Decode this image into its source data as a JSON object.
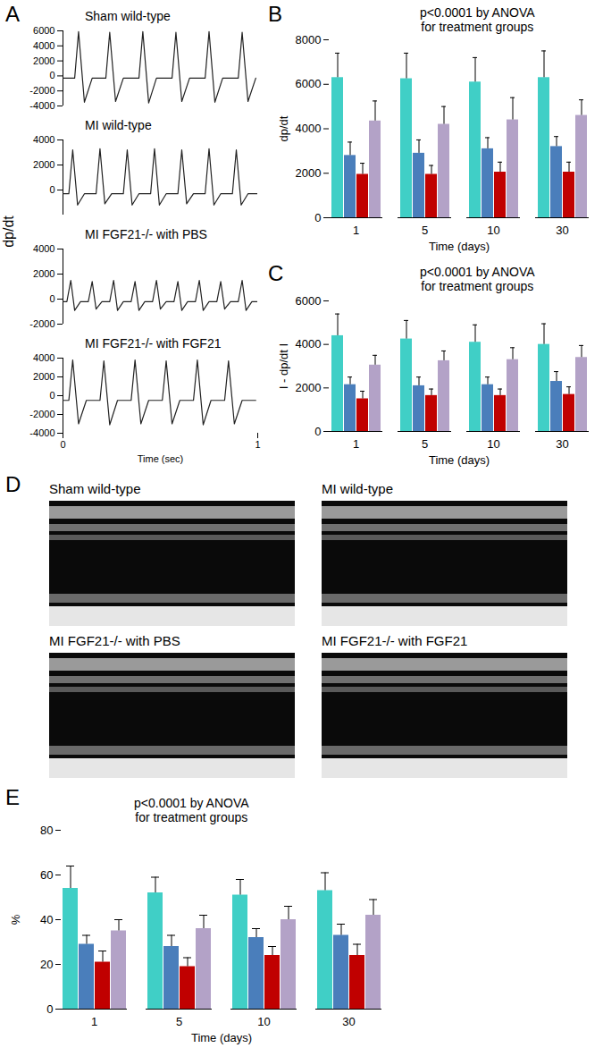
{
  "chart_data": [
    {
      "panel": "A",
      "type": "line",
      "y_label": "dp/dt",
      "x_label": "Time (sec)",
      "xlim": [
        0,
        1
      ],
      "xticks": [
        0,
        1
      ],
      "traces": [
        {
          "title": "Sham wild-type",
          "color": "#222222",
          "ylim": [
            -4000,
            6000
          ],
          "yticks": [
            -4000,
            -2000,
            0,
            2000,
            4000,
            6000
          ],
          "x": [
            0,
            0.06,
            0.08,
            0.11,
            0.15,
            0.22,
            0.24,
            0.27,
            0.31,
            0.39,
            0.41,
            0.44,
            0.48,
            0.56,
            0.58,
            0.61,
            0.65,
            0.73,
            0.75,
            0.78,
            0.82,
            0.9,
            0.92,
            0.95,
            0.99
          ],
          "values": [
            -300,
            -300,
            5900,
            -3500,
            -300,
            -300,
            5800,
            -3400,
            -300,
            -300,
            5900,
            -3600,
            -300,
            -300,
            5800,
            -3400,
            -300,
            -300,
            5900,
            -3500,
            -300,
            -300,
            5800,
            -3400,
            -300
          ]
        },
        {
          "title": "MI wild-type",
          "color": "#222222",
          "ylim": [
            -2000,
            4000
          ],
          "yticks": [
            0,
            2000,
            4000
          ],
          "x": [
            0,
            0.03,
            0.05,
            0.075,
            0.11,
            0.17,
            0.19,
            0.215,
            0.25,
            0.31,
            0.33,
            0.355,
            0.39,
            0.45,
            0.47,
            0.495,
            0.53,
            0.59,
            0.61,
            0.635,
            0.67,
            0.73,
            0.75,
            0.775,
            0.81,
            0.87,
            0.89,
            0.915,
            0.95,
            1
          ],
          "values": [
            -300,
            -300,
            3200,
            -1200,
            -300,
            -300,
            3300,
            -1100,
            -300,
            -300,
            3200,
            -1200,
            -300,
            -300,
            3300,
            -1200,
            -300,
            -300,
            3200,
            -1100,
            -300,
            -300,
            3300,
            -1200,
            -300,
            -300,
            3200,
            -1200,
            -300,
            -300
          ]
        },
        {
          "title": "MI FGF21-/- with PBS",
          "color": "#222222",
          "ylim": [
            -2000,
            4000
          ],
          "yticks": [
            -2000,
            0,
            2000,
            4000
          ],
          "x": [
            0,
            0.02,
            0.04,
            0.06,
            0.09,
            0.13,
            0.15,
            0.17,
            0.2,
            0.24,
            0.26,
            0.28,
            0.31,
            0.35,
            0.37,
            0.39,
            0.42,
            0.46,
            0.48,
            0.5,
            0.53,
            0.57,
            0.59,
            0.61,
            0.64,
            0.68,
            0.7,
            0.72,
            0.75,
            0.79,
            0.81,
            0.83,
            0.86,
            0.9,
            0.92,
            0.94,
            0.97,
            1
          ],
          "values": [
            -200,
            -200,
            1500,
            -900,
            -200,
            -200,
            1400,
            -800,
            -200,
            -200,
            1500,
            -900,
            -200,
            -200,
            1400,
            -900,
            -200,
            -200,
            1500,
            -800,
            -200,
            -200,
            1400,
            -900,
            -200,
            -200,
            1500,
            -900,
            -200,
            -200,
            1400,
            -800,
            -200,
            -200,
            1500,
            -900,
            -200,
            -200
          ]
        },
        {
          "title": "MI FGF21-/- with FGF21",
          "color": "#222222",
          "ylim": [
            -4000,
            4000
          ],
          "yticks": [
            -4000,
            -2000,
            0,
            2000,
            4000
          ],
          "x": [
            0,
            0.03,
            0.05,
            0.08,
            0.12,
            0.19,
            0.21,
            0.24,
            0.28,
            0.35,
            0.37,
            0.4,
            0.44,
            0.51,
            0.53,
            0.56,
            0.6,
            0.67,
            0.69,
            0.72,
            0.76,
            0.83,
            0.85,
            0.88,
            0.92,
            0.99
          ],
          "values": [
            -500,
            -500,
            3800,
            -3000,
            -500,
            -500,
            3700,
            -3100,
            -500,
            -500,
            3800,
            -3000,
            -500,
            -500,
            3700,
            -3000,
            -500,
            -500,
            3800,
            -3100,
            -500,
            -500,
            3700,
            -3000,
            -500,
            -500
          ]
        }
      ]
    },
    {
      "panel": "B",
      "type": "bar",
      "annotation": "p<0.0001 by ANOVA\nfor treatment groups",
      "x_label": "Time (days)",
      "y_label": "dp/dt",
      "categories": [
        1,
        5,
        10,
        30
      ],
      "ylim": [
        0,
        8000
      ],
      "yticks": [
        0,
        2000,
        4000,
        6000,
        8000
      ],
      "series": [
        {
          "color": "#40CFC6",
          "values": [
            6300,
            6250,
            6100,
            6300
          ],
          "errors": [
            1100,
            1150,
            1100,
            1200
          ]
        },
        {
          "color": "#4A7EBB",
          "values": [
            2800,
            2900,
            3100,
            3200
          ],
          "errors": [
            600,
            600,
            500,
            450
          ]
        },
        {
          "color": "#C00000",
          "values": [
            1950,
            1950,
            2050,
            2050
          ],
          "errors": [
            500,
            400,
            450,
            450
          ]
        },
        {
          "color": "#B3A2C7",
          "values": [
            4350,
            4200,
            4400,
            4600
          ],
          "errors": [
            900,
            800,
            1000,
            700
          ]
        }
      ]
    },
    {
      "panel": "C",
      "type": "bar",
      "annotation": "p<0.0001 by ANOVA\nfor treatment groups",
      "x_label": "Time (days)",
      "y_label": "I - dp/dt I",
      "categories": [
        1,
        5,
        10,
        30
      ],
      "ylim": [
        0,
        6000
      ],
      "yticks": [
        0,
        2000,
        4000,
        6000
      ],
      "series": [
        {
          "color": "#40CFC6",
          "values": [
            4400,
            4250,
            4100,
            4000
          ],
          "errors": [
            1000,
            850,
            800,
            950
          ]
        },
        {
          "color": "#4A7EBB",
          "values": [
            2150,
            2100,
            2150,
            2300
          ],
          "errors": [
            350,
            400,
            350,
            450
          ]
        },
        {
          "color": "#C00000",
          "values": [
            1500,
            1650,
            1650,
            1700
          ],
          "errors": [
            350,
            300,
            300,
            350
          ]
        },
        {
          "color": "#B3A2C7",
          "values": [
            3050,
            3250,
            3300,
            3400
          ],
          "errors": [
            450,
            450,
            550,
            550
          ]
        }
      ]
    },
    {
      "panel": "D",
      "type": "image",
      "images": [
        "Sham wild-type",
        "MI wild-type",
        "MI FGF21-/- with PBS",
        "MI FGF21-/- with FGF21"
      ]
    },
    {
      "panel": "E",
      "type": "bar",
      "annotation": "p<0.0001 by ANOVA\nfor treatment groups",
      "x_label": "Time (days)",
      "y_label": "%",
      "categories": [
        1,
        5,
        10,
        30
      ],
      "ylim": [
        0,
        80
      ],
      "yticks": [
        0,
        20,
        40,
        60,
        80
      ],
      "series": [
        {
          "color": "#40CFC6",
          "values": [
            54,
            52,
            51,
            53
          ],
          "errors": [
            10,
            7,
            7,
            8
          ]
        },
        {
          "color": "#4A7EBB",
          "values": [
            29,
            28,
            32,
            33
          ],
          "errors": [
            4,
            5,
            4,
            5
          ]
        },
        {
          "color": "#C00000",
          "values": [
            21,
            19,
            24,
            24
          ],
          "errors": [
            5,
            4,
            4,
            5
          ]
        },
        {
          "color": "#B3A2C7",
          "values": [
            35,
            36,
            40,
            42
          ],
          "errors": [
            5,
            6,
            6,
            7
          ]
        }
      ]
    }
  ]
}
